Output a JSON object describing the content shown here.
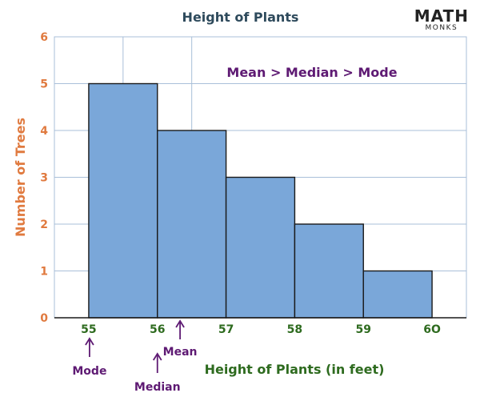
{
  "logo": {
    "main": "MATH",
    "sub": "MONKS"
  },
  "chart_data": {
    "type": "bar",
    "title": "Height of Plants",
    "xlabel": "Height of Plants (in feet)",
    "ylabel": "Number of Trees",
    "bins": [
      {
        "from": 55,
        "to": 56,
        "count": 5
      },
      {
        "from": 56,
        "to": 57,
        "count": 4
      },
      {
        "from": 57,
        "to": 58,
        "count": 3
      },
      {
        "from": 58,
        "to": 59,
        "count": 2
      },
      {
        "from": 59,
        "to": 60,
        "count": 1
      }
    ],
    "xticks": [
      "55",
      "56",
      "57",
      "58",
      "59",
      "6O"
    ],
    "yticks": [
      "0",
      "1",
      "2",
      "3",
      "4",
      "5",
      "6"
    ],
    "ylim": [
      0,
      6
    ],
    "grid": true,
    "annotations": {
      "relation": "Mean > Median > Mode",
      "mode": {
        "label": "Mode",
        "x": 55
      },
      "median": {
        "label": "Median",
        "x": 56
      },
      "mean": {
        "label": "Mean",
        "x": 56.33
      }
    },
    "colors": {
      "bar": "#7aa7d9",
      "bar_edge": "#1a1a1a",
      "grid": "#a9bfd9",
      "title": "#2e4a5c",
      "ytick": "#e07a3f",
      "ylabel": "#e07a3f",
      "xtick": "#2e6b1f",
      "xlabel": "#2e6b1f",
      "annotation": "#5e1a73"
    }
  }
}
